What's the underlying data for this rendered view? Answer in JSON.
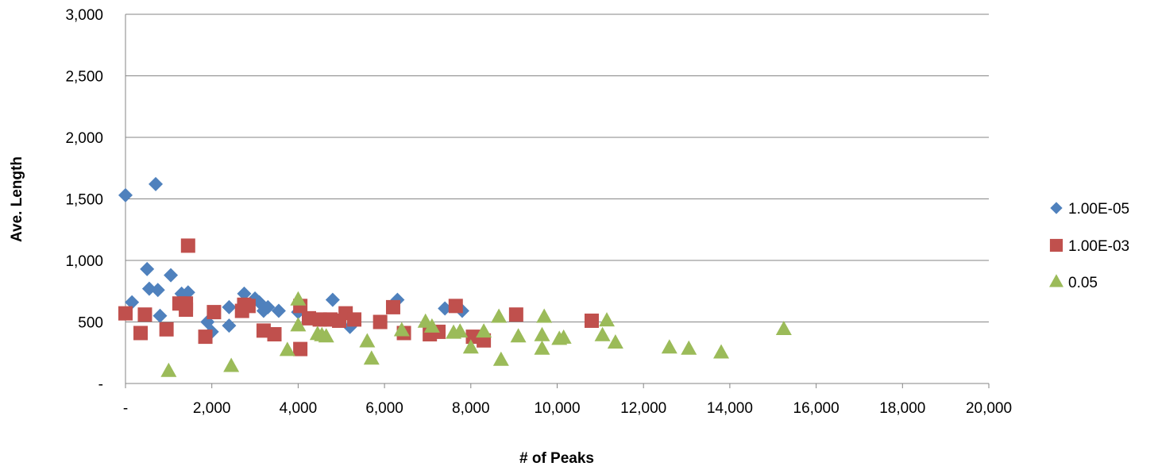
{
  "chart_data": {
    "type": "scatter",
    "title": "",
    "xlabel": "# of Peaks",
    "ylabel": "Ave. Length",
    "xlim": [
      0,
      20000
    ],
    "ylim": [
      0,
      3000
    ],
    "x_ticks": [
      0,
      2000,
      4000,
      6000,
      8000,
      10000,
      12000,
      14000,
      16000,
      18000,
      20000
    ],
    "x_tick_labels": [
      "-",
      "2,000",
      "4,000",
      "6,000",
      "8,000",
      "10,000",
      "12,000",
      "14,000",
      "16,000",
      "18,000",
      "20,000"
    ],
    "y_ticks": [
      0,
      500,
      1000,
      1500,
      2000,
      2500,
      3000
    ],
    "y_tick_labels": [
      "-",
      "500",
      "1,000",
      "1,500",
      "2,000",
      "2,500",
      "3,000"
    ],
    "grid": "horizontal",
    "legend_position": "right",
    "series": [
      {
        "name": "1.00E-05",
        "marker": "diamond",
        "color": "#4F81BD",
        "points": [
          [
            0,
            1530
          ],
          [
            150,
            660
          ],
          [
            500,
            930
          ],
          [
            550,
            770
          ],
          [
            700,
            1620
          ],
          [
            750,
            760
          ],
          [
            800,
            550
          ],
          [
            1050,
            880
          ],
          [
            1300,
            730
          ],
          [
            1450,
            740
          ],
          [
            1900,
            500
          ],
          [
            2000,
            420
          ],
          [
            2400,
            620
          ],
          [
            2400,
            470
          ],
          [
            2750,
            730
          ],
          [
            3000,
            690
          ],
          [
            3100,
            660
          ],
          [
            3200,
            590
          ],
          [
            3300,
            620
          ],
          [
            3550,
            590
          ],
          [
            4000,
            580
          ],
          [
            4800,
            680
          ],
          [
            5200,
            460
          ],
          [
            6300,
            680
          ],
          [
            7400,
            610
          ],
          [
            7800,
            590
          ]
        ]
      },
      {
        "name": "1.00E-03",
        "marker": "square",
        "color": "#C0504D",
        "points": [
          [
            0,
            570
          ],
          [
            350,
            410
          ],
          [
            450,
            560
          ],
          [
            950,
            440
          ],
          [
            1250,
            650
          ],
          [
            1400,
            650
          ],
          [
            1400,
            600
          ],
          [
            1450,
            1120
          ],
          [
            1850,
            380
          ],
          [
            2050,
            580
          ],
          [
            2700,
            590
          ],
          [
            2750,
            640
          ],
          [
            2850,
            630
          ],
          [
            3200,
            430
          ],
          [
            3450,
            400
          ],
          [
            4050,
            630
          ],
          [
            4050,
            280
          ],
          [
            4250,
            530
          ],
          [
            4500,
            520
          ],
          [
            4750,
            520
          ],
          [
            4950,
            510
          ],
          [
            5100,
            570
          ],
          [
            5300,
            520
          ],
          [
            5900,
            500
          ],
          [
            6200,
            620
          ],
          [
            6450,
            410
          ],
          [
            7050,
            400
          ],
          [
            7250,
            420
          ],
          [
            7650,
            630
          ],
          [
            8050,
            380
          ],
          [
            8300,
            350
          ],
          [
            9050,
            560
          ],
          [
            10800,
            510
          ]
        ]
      },
      {
        "name": "0.05",
        "marker": "triangle",
        "color": "#9BBB59",
        "points": [
          [
            1000,
            100
          ],
          [
            2450,
            140
          ],
          [
            3750,
            270
          ],
          [
            4000,
            680
          ],
          [
            4000,
            470
          ],
          [
            4450,
            400
          ],
          [
            4550,
            390
          ],
          [
            4650,
            380
          ],
          [
            5600,
            340
          ],
          [
            5700,
            200
          ],
          [
            6400,
            430
          ],
          [
            6950,
            500
          ],
          [
            7100,
            460
          ],
          [
            7600,
            410
          ],
          [
            7750,
            420
          ],
          [
            8000,
            290
          ],
          [
            8300,
            420
          ],
          [
            8650,
            540
          ],
          [
            8700,
            190
          ],
          [
            9100,
            380
          ],
          [
            9650,
            390
          ],
          [
            9650,
            280
          ],
          [
            9700,
            540
          ],
          [
            10050,
            360
          ],
          [
            10150,
            370
          ],
          [
            11050,
            390
          ],
          [
            11150,
            510
          ],
          [
            11350,
            330
          ],
          [
            12600,
            290
          ],
          [
            13050,
            280
          ],
          [
            13800,
            250
          ],
          [
            15250,
            440
          ]
        ]
      }
    ]
  }
}
